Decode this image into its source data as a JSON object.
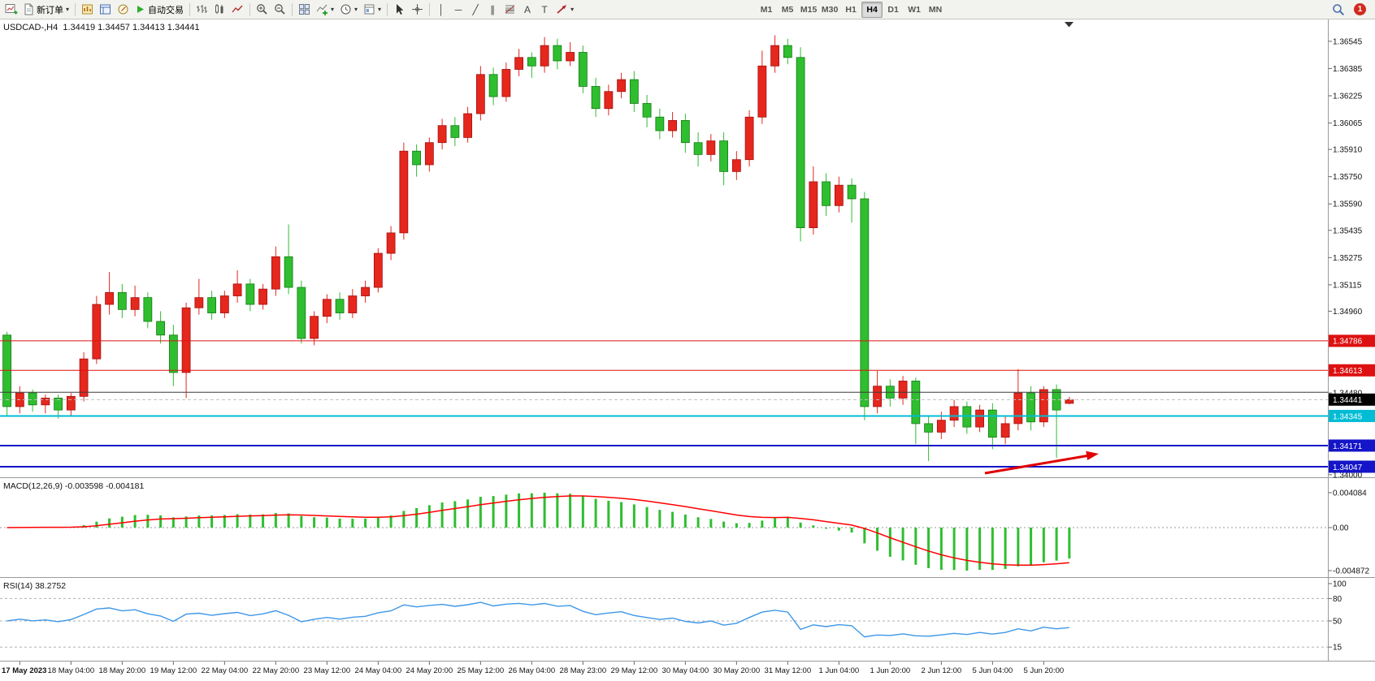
{
  "toolbar": {
    "new_order_label": "新订单",
    "autotrading_label": "自动交易",
    "timeframes": [
      "M1",
      "M5",
      "M15",
      "M30",
      "H1",
      "H4",
      "D1",
      "W1",
      "MN"
    ],
    "active_timeframe": "H4",
    "notification_count": "1",
    "icon_glyphs": {
      "vertical_line": "│",
      "horizontal_line": "─",
      "trendline": "╱",
      "channel": "∥",
      "text": "A",
      "text_label": "T",
      "caret": "▾"
    }
  },
  "chart": {
    "title": "USDCAD-,H4  1.34419 1.34457 1.34413 1.34441",
    "symbol": "USDCAD-",
    "period": "H4",
    "ohlc": {
      "open": "1.34419",
      "high": "1.34457",
      "low": "1.34413",
      "close": "1.34441"
    },
    "current_price": 1.34441,
    "current_price_label": "1.34441",
    "price_axis_ticks": [
      "1.36545",
      "1.36385",
      "1.36225",
      "1.36065",
      "1.35910",
      "1.35750",
      "1.35590",
      "1.35435",
      "1.35275",
      "1.35115",
      "1.34960",
      "1.34800",
      "1.34640",
      "1.34480",
      "1.34320",
      "1.34160",
      "1.34000"
    ],
    "lines": [
      {
        "name": "resistance-line-upper",
        "price": 1.34786,
        "label": "1.34786",
        "color": "#dd1111",
        "width": 1
      },
      {
        "name": "resistance-line-lower",
        "price": 1.34613,
        "label": "1.34613",
        "color": "#dd1111",
        "width": 1
      },
      {
        "name": "dark-level-line",
        "price": 1.34484,
        "label": "",
        "color": "#3c3c3c",
        "width": 1
      },
      {
        "name": "cyan-support-line",
        "price": 1.34345,
        "label": "1.34345",
        "color": "#00bcd4",
        "width": 2
      },
      {
        "name": "blue-support-line-upper",
        "price": 1.34171,
        "label": "1.34171",
        "color": "#1414c8",
        "width": 2
      },
      {
        "name": "blue-support-line-lower",
        "price": 1.34047,
        "label": "1.34047",
        "color": "#1414c8",
        "width": 2
      }
    ],
    "time_labels": [
      "17 May 2023",
      "18 May 04:00",
      "18 May 20:00",
      "19 May 12:00",
      "22 May 04:00",
      "22 May 20:00",
      "23 May 12:00",
      "24 May 04:00",
      "24 May 20:00",
      "25 May 12:00",
      "26 May 04:00",
      "28 May 23:00",
      "29 May 12:00",
      "30 May 04:00",
      "30 May 20:00",
      "31 May 12:00",
      "1 Jun 04:00",
      "1 Jun 20:00",
      "2 Jun 12:00",
      "5 Jun 04:00",
      "5 Jun 20:00"
    ],
    "colors": {
      "up": "#e5271d",
      "up_border": "#a50f0f",
      "down": "#2fbe2f",
      "down_border": "#157a15",
      "macd_histogram": "#2fbe2f",
      "macd_signal": "#ff0000",
      "rsi": "#3e97e8",
      "bid_line": "#c0c0c0"
    }
  },
  "chart_data": {
    "type": "candlestick",
    "symbol": "USDCAD",
    "timeframe": "H4",
    "ylim": [
      1.33985,
      1.36673
    ],
    "color_convention": "red = bullish, green = bearish",
    "candles": [
      [
        1.3482,
        1.3484,
        1.3434,
        1.344
      ],
      [
        1.344,
        1.3452,
        1.3436,
        1.3448
      ],
      [
        1.3448,
        1.345,
        1.3437,
        1.3441
      ],
      [
        1.3441,
        1.3447,
        1.3436,
        1.3445
      ],
      [
        1.3445,
        1.3447,
        1.3433,
        1.3438
      ],
      [
        1.3438,
        1.3448,
        1.3434,
        1.3446
      ],
      [
        1.3446,
        1.3472,
        1.3443,
        1.3468
      ],
      [
        1.3468,
        1.3505,
        1.3465,
        1.35
      ],
      [
        1.35,
        1.3519,
        1.3494,
        1.3507
      ],
      [
        1.3507,
        1.3512,
        1.3492,
        1.3497
      ],
      [
        1.3497,
        1.3511,
        1.3493,
        1.3504
      ],
      [
        1.3504,
        1.3507,
        1.3486,
        1.349
      ],
      [
        1.349,
        1.3496,
        1.3477,
        1.3482
      ],
      [
        1.3482,
        1.3488,
        1.3452,
        1.346
      ],
      [
        1.346,
        1.3501,
        1.3445,
        1.3498
      ],
      [
        1.3498,
        1.3515,
        1.3494,
        1.3504
      ],
      [
        1.3504,
        1.3508,
        1.3491,
        1.3495
      ],
      [
        1.3495,
        1.3508,
        1.3492,
        1.3505
      ],
      [
        1.3505,
        1.352,
        1.3501,
        1.3512
      ],
      [
        1.3512,
        1.3515,
        1.3496,
        1.35
      ],
      [
        1.35,
        1.3512,
        1.3497,
        1.3509
      ],
      [
        1.3509,
        1.3534,
        1.3505,
        1.3528
      ],
      [
        1.3528,
        1.3547,
        1.3506,
        1.351
      ],
      [
        1.351,
        1.3514,
        1.3477,
        1.348
      ],
      [
        1.348,
        1.3496,
        1.3476,
        1.3493
      ],
      [
        1.3493,
        1.3506,
        1.3489,
        1.3503
      ],
      [
        1.3503,
        1.3507,
        1.3491,
        1.3495
      ],
      [
        1.3495,
        1.3509,
        1.3492,
        1.3505
      ],
      [
        1.3505,
        1.3514,
        1.3501,
        1.351
      ],
      [
        1.351,
        1.3533,
        1.3507,
        1.353
      ],
      [
        1.353,
        1.3546,
        1.3526,
        1.3542
      ],
      [
        1.3542,
        1.3595,
        1.3538,
        1.359
      ],
      [
        1.359,
        1.3594,
        1.3575,
        1.3582
      ],
      [
        1.3582,
        1.3598,
        1.3578,
        1.3595
      ],
      [
        1.3595,
        1.3609,
        1.3591,
        1.3605
      ],
      [
        1.3605,
        1.361,
        1.3593,
        1.3598
      ],
      [
        1.3598,
        1.3616,
        1.3595,
        1.3612
      ],
      [
        1.3612,
        1.364,
        1.3608,
        1.3635
      ],
      [
        1.3635,
        1.3639,
        1.3617,
        1.3622
      ],
      [
        1.3622,
        1.3642,
        1.3619,
        1.3638
      ],
      [
        1.3638,
        1.365,
        1.3634,
        1.3645
      ],
      [
        1.3645,
        1.3648,
        1.3633,
        1.364
      ],
      [
        1.364,
        1.3657,
        1.3636,
        1.3652
      ],
      [
        1.3652,
        1.3656,
        1.3638,
        1.3643
      ],
      [
        1.3643,
        1.3654,
        1.364,
        1.3648
      ],
      [
        1.3648,
        1.3652,
        1.3624,
        1.3628
      ],
      [
        1.3628,
        1.3633,
        1.361,
        1.3615
      ],
      [
        1.3615,
        1.3629,
        1.3611,
        1.3625
      ],
      [
        1.3625,
        1.3636,
        1.3621,
        1.3632
      ],
      [
        1.3632,
        1.3637,
        1.3613,
        1.3618
      ],
      [
        1.3618,
        1.3623,
        1.3604,
        1.361
      ],
      [
        1.361,
        1.3615,
        1.3597,
        1.3602
      ],
      [
        1.3602,
        1.3613,
        1.3598,
        1.3608
      ],
      [
        1.3608,
        1.3612,
        1.3589,
        1.3595
      ],
      [
        1.3595,
        1.3601,
        1.3581,
        1.3588
      ],
      [
        1.3588,
        1.36,
        1.3584,
        1.3596
      ],
      [
        1.3596,
        1.3601,
        1.357,
        1.3578
      ],
      [
        1.3578,
        1.359,
        1.3573,
        1.3585
      ],
      [
        1.3585,
        1.3614,
        1.3581,
        1.361
      ],
      [
        1.361,
        1.3649,
        1.3606,
        1.364
      ],
      [
        1.364,
        1.3658,
        1.3636,
        1.3652
      ],
      [
        1.3652,
        1.3656,
        1.3641,
        1.3645
      ],
      [
        1.3645,
        1.3651,
        1.3537,
        1.3545
      ],
      [
        1.3545,
        1.3581,
        1.3541,
        1.3572
      ],
      [
        1.3572,
        1.3577,
        1.3552,
        1.3558
      ],
      [
        1.3558,
        1.3575,
        1.3554,
        1.357
      ],
      [
        1.357,
        1.3574,
        1.3548,
        1.3562
      ],
      [
        1.3562,
        1.3566,
        1.3432,
        1.344
      ],
      [
        1.344,
        1.3461,
        1.3436,
        1.3452
      ],
      [
        1.3452,
        1.3456,
        1.344,
        1.3445
      ],
      [
        1.3445,
        1.3458,
        1.3441,
        1.3455
      ],
      [
        1.3455,
        1.3457,
        1.3418,
        1.343
      ],
      [
        1.343,
        1.3434,
        1.3408,
        1.3425
      ],
      [
        1.3425,
        1.3437,
        1.3421,
        1.3432
      ],
      [
        1.3432,
        1.3444,
        1.3428,
        1.344
      ],
      [
        1.344,
        1.3443,
        1.3424,
        1.3428
      ],
      [
        1.3428,
        1.3441,
        1.3425,
        1.3438
      ],
      [
        1.3438,
        1.3442,
        1.3415,
        1.3422
      ],
      [
        1.3422,
        1.3434,
        1.3418,
        1.343
      ],
      [
        1.343,
        1.3462,
        1.3426,
        1.3448
      ],
      [
        1.3448,
        1.3452,
        1.3426,
        1.3431
      ],
      [
        1.3431,
        1.3452,
        1.3428,
        1.345
      ],
      [
        1.345,
        1.3453,
        1.341,
        1.3438
      ],
      [
        1.34419,
        1.34457,
        1.34413,
        1.34441
      ]
    ],
    "indicators": [
      {
        "name": "MACD",
        "params": [
          12,
          26,
          9
        ],
        "current_macd": -0.003598,
        "current_signal": -0.004181
      },
      {
        "name": "RSI",
        "params": [
          14
        ],
        "current_value": 38.2752
      }
    ]
  },
  "macd": {
    "label": "MACD(12,26,9) -0.003598 -0.004181",
    "scale": [
      "0.004084",
      "0.00",
      "-0.004872"
    ]
  },
  "rsi": {
    "label": "RSI(14) 38.2752",
    "scale": [
      "100",
      "80",
      "50",
      "15"
    ],
    "levels": [
      80,
      50,
      15
    ]
  }
}
